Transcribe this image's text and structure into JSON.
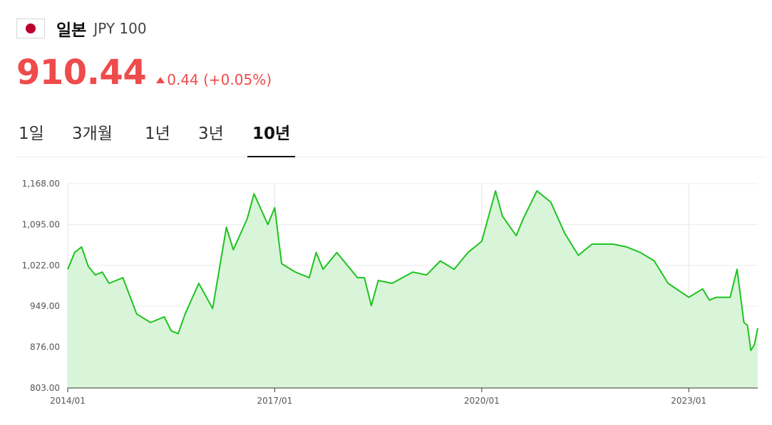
{
  "header": {
    "country": "일본",
    "code": "JPY 100",
    "flag": "japan-flag"
  },
  "quote": {
    "price": "910.44",
    "change": "0.44 (+0.05%)",
    "direction": "up",
    "color": "#ef4b4b"
  },
  "tabs": [
    {
      "label": "1일",
      "active": false
    },
    {
      "label": "3개월",
      "active": false
    },
    {
      "label": "1년",
      "active": false
    },
    {
      "label": "3년",
      "active": false
    },
    {
      "label": "10년",
      "active": true
    }
  ],
  "chart_data": {
    "type": "area",
    "line_color": "#1ec31e",
    "fill_color": "#d9f5d9",
    "grid": true,
    "ylim": [
      803,
      1168
    ],
    "y_ticks": [
      "1,168.00",
      "1,095.00",
      "1,022.00",
      "949.00",
      "876.00",
      "803.00"
    ],
    "x_ticks": [
      "2014/01",
      "2017/01",
      "2020/01",
      "2023/01"
    ],
    "x_tick_values": [
      2014.0,
      2017.0,
      2020.0,
      2023.0
    ],
    "xlim": [
      2014.0,
      2024.0
    ],
    "series": [
      {
        "x": [
          2014.0,
          2014.1,
          2014.2,
          2014.3,
          2014.4,
          2014.5,
          2014.6,
          2014.8,
          2015.0,
          2015.2,
          2015.4,
          2015.5,
          2015.6,
          2015.7,
          2015.9,
          2016.1,
          2016.3,
          2016.4,
          2016.6,
          2016.7,
          2016.9,
          2017.0,
          2017.1,
          2017.3,
          2017.5,
          2017.6,
          2017.7,
          2017.9,
          2018.2,
          2018.3,
          2018.4,
          2018.5,
          2018.7,
          2019.0,
          2019.2,
          2019.4,
          2019.6,
          2019.8,
          2020.0,
          2020.2,
          2020.3,
          2020.5,
          2020.6,
          2020.8,
          2021.0,
          2021.2,
          2021.4,
          2021.6,
          2021.9,
          2022.1,
          2022.3,
          2022.5,
          2022.7,
          2023.0,
          2023.2,
          2023.3,
          2023.4,
          2023.6,
          2023.7,
          2023.8,
          2023.85,
          2023.9,
          2023.95,
          2024.0
        ],
        "y": [
          1015,
          1045,
          1055,
          1020,
          1005,
          1010,
          990,
          1000,
          935,
          920,
          930,
          905,
          900,
          935,
          990,
          945,
          1090,
          1050,
          1105,
          1150,
          1095,
          1125,
          1025,
          1010,
          1000,
          1045,
          1015,
          1045,
          1000,
          1000,
          950,
          995,
          990,
          1010,
          1005,
          1030,
          1015,
          1045,
          1065,
          1155,
          1110,
          1075,
          1105,
          1155,
          1135,
          1080,
          1040,
          1060,
          1060,
          1055,
          1045,
          1030,
          990,
          965,
          980,
          960,
          965,
          965,
          1015,
          920,
          915,
          870,
          880,
          910
        ]
      }
    ]
  }
}
